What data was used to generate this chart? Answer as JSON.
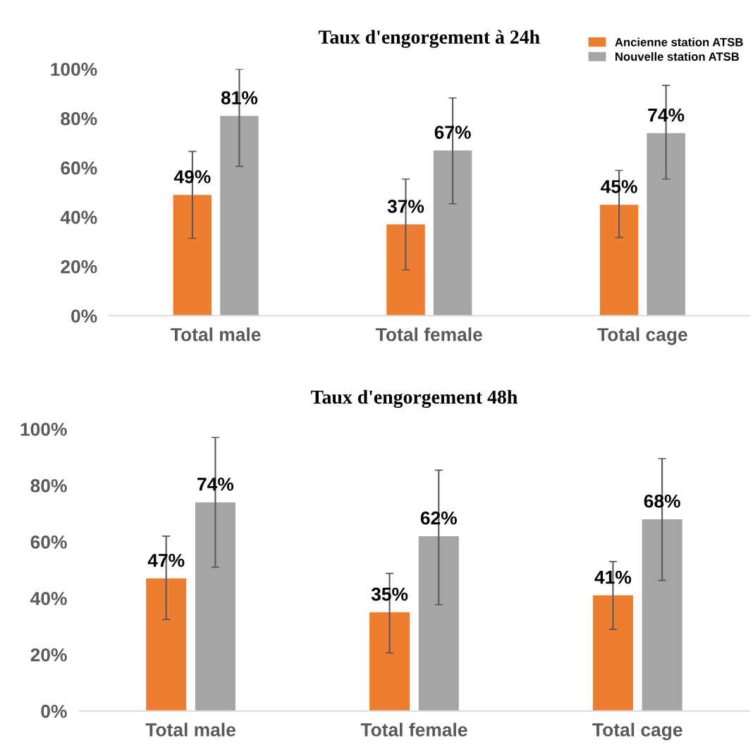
{
  "chart_data": [
    {
      "type": "bar",
      "title": "Taux d'engorgement à 24h",
      "categories": [
        "Total male",
        "Total female",
        "Total cage"
      ],
      "series": [
        {
          "name": "Ancienne station ATSB",
          "color": "#ed7d31",
          "values": [
            49,
            37,
            45
          ],
          "value_labels": [
            "49%",
            "37%",
            "45%"
          ],
          "errors": [
            [
              31.4,
              66.6
            ],
            [
              18.6,
              55.4
            ],
            [
              31.7,
              58.9
            ]
          ]
        },
        {
          "name": "Nouvelle station ATSB",
          "color": "#a5a5a5",
          "values": [
            81,
            67,
            74
          ],
          "value_labels": [
            "81%",
            "67%",
            "74%"
          ],
          "errors": [
            [
              60.6,
              100
            ],
            [
              45.4,
              88.3
            ],
            [
              55.4,
              93.4
            ]
          ]
        }
      ],
      "ylim": [
        0,
        100
      ],
      "yticks": [
        {
          "value": 0,
          "label": "0%"
        },
        {
          "value": 20,
          "label": "20%"
        },
        {
          "value": 40,
          "label": "40%"
        },
        {
          "value": 60,
          "label": "60%"
        },
        {
          "value": 80,
          "label": "80%"
        },
        {
          "value": 100,
          "label": "100%"
        }
      ],
      "grid": false,
      "legend": "top right"
    },
    {
      "type": "bar",
      "title": "Taux d'engorgement 48h",
      "categories": [
        "Total male",
        "Total female",
        "Total cage"
      ],
      "series": [
        {
          "color": "#ed7d31",
          "values": [
            47,
            35,
            41
          ],
          "value_labels": [
            "47%",
            "35%",
            "41%"
          ],
          "errors": [
            [
              32.5,
              62
            ],
            [
              20.6,
              48.8
            ],
            [
              29,
              53
            ]
          ]
        },
        {
          "color": "#a5a5a5",
          "values": [
            74,
            62,
            68
          ],
          "value_labels": [
            "74%",
            "62%",
            "68%"
          ],
          "errors": [
            [
              51,
              97
            ],
            [
              37.7,
              85.4
            ],
            [
              46.3,
              89.5
            ]
          ]
        }
      ],
      "ylim": [
        0,
        100
      ],
      "yticks": [
        {
          "value": 0,
          "label": "0%"
        },
        {
          "value": 20,
          "label": "20%"
        },
        {
          "value": 40,
          "label": "40%"
        },
        {
          "value": 60,
          "label": "60%"
        },
        {
          "value": 80,
          "label": "80%"
        },
        {
          "value": 100,
          "label": "100%"
        }
      ],
      "grid": false,
      "legend": false
    }
  ]
}
